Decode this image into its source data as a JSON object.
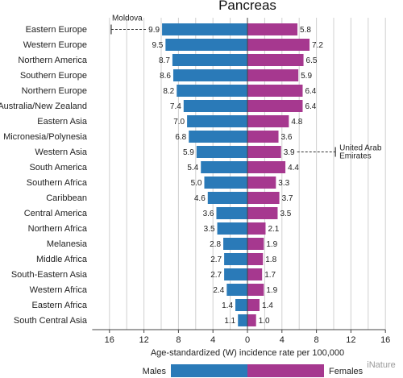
{
  "chart_data": {
    "type": "bar",
    "title": "Pancreas",
    "xlabel": "Age-standardized (W) incidence rate per 100,000",
    "x_tick_labels": [
      "16",
      "12",
      "8",
      "4",
      "0",
      "4",
      "8",
      "12",
      "16"
    ],
    "xlim": [
      -18,
      16
    ],
    "grid": true,
    "legend_position": "bottom",
    "categories": [
      "Eastern Europe",
      "Western Europe",
      "Northern America",
      "Southern Europe",
      "Northern Europe",
      "Australia/New Zealand",
      "Eastern Asia",
      "Micronesia/Polynesia",
      "Western Asia",
      "South America",
      "Southern Africa",
      "Caribbean",
      "Central America",
      "Northern Africa",
      "Melanesia",
      "Middle Africa",
      "South-Eastern Asia",
      "Western Africa",
      "Eastern Africa",
      "South Central Asia"
    ],
    "series": [
      {
        "name": "Males",
        "color": "#2a7ab8",
        "direction": "left",
        "values": [
          9.9,
          9.5,
          8.7,
          8.6,
          8.2,
          7.4,
          7.0,
          6.8,
          5.9,
          5.4,
          5.0,
          4.6,
          3.6,
          3.5,
          2.8,
          2.7,
          2.7,
          2.4,
          1.4,
          1.1
        ]
      },
      {
        "name": "Females",
        "color": "#a6388f",
        "direction": "right",
        "values": [
          5.8,
          7.2,
          6.5,
          5.9,
          6.4,
          6.4,
          4.8,
          3.6,
          3.9,
          4.4,
          3.3,
          3.7,
          3.5,
          2.1,
          1.9,
          1.8,
          1.7,
          1.9,
          1.4,
          1.0
        ]
      }
    ],
    "annotations": [
      {
        "text": "Moldova",
        "series": "Males",
        "value": 15.8,
        "row": "Eastern Europe"
      },
      {
        "text": "United Arab\nEmirates",
        "series": "Females",
        "value": 10.2,
        "row": "Western Asia"
      }
    ]
  },
  "watermark": "iNature"
}
